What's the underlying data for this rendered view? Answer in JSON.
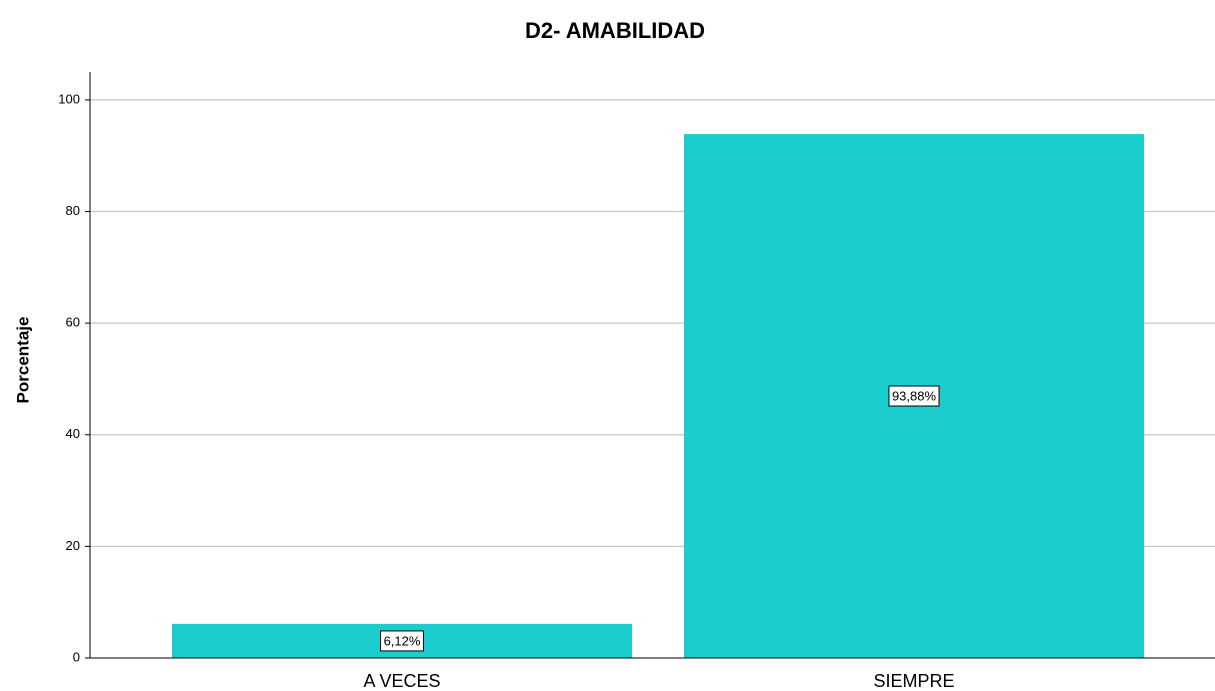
{
  "chart_data": {
    "type": "bar",
    "title": "D2- AMABILIDAD",
    "y_label": "Porcentaje",
    "categories": [
      "A VECES",
      "SIEMPRE"
    ],
    "values": [
      6.12,
      93.88
    ],
    "value_labels": [
      "6,12%",
      "93,88%"
    ],
    "color": "#1ccdcd",
    "ylim": [
      0,
      105
    ],
    "yticks": [
      0,
      20,
      40,
      60,
      80,
      100
    ],
    "grid": true
  }
}
